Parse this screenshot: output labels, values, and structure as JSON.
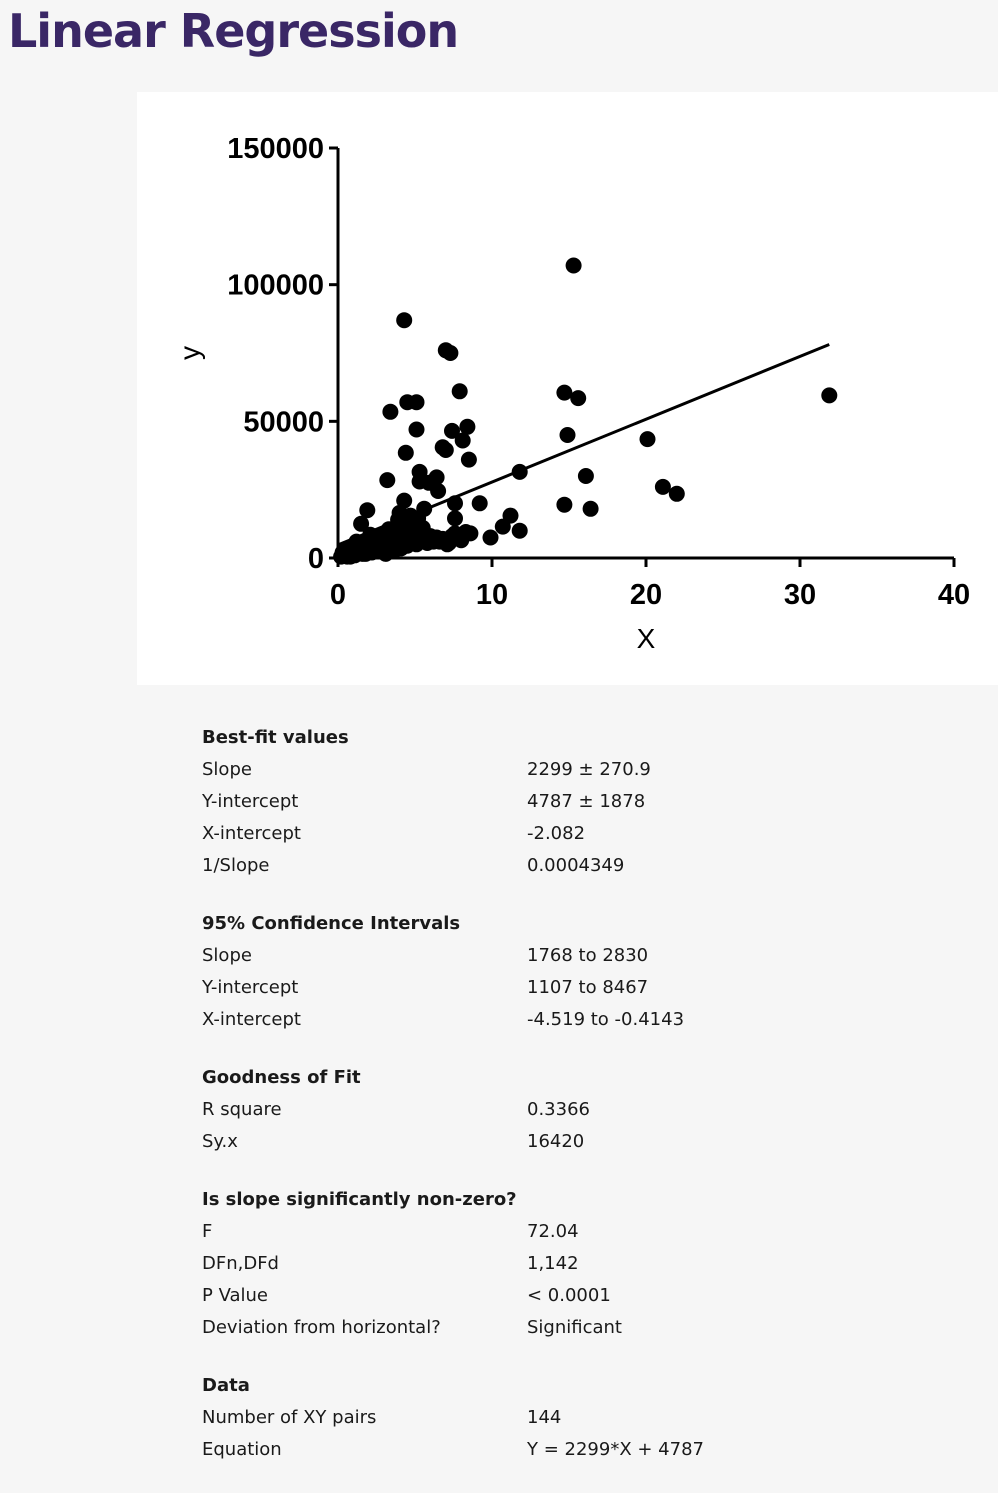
{
  "page": {
    "title": "Linear Regression"
  },
  "chart_data": {
    "type": "scatter",
    "xlabel": "X",
    "ylabel": "y",
    "xlim": [
      0,
      40
    ],
    "ylim": [
      0,
      150000
    ],
    "xticks": [
      "0",
      "10",
      "20",
      "30",
      "40"
    ],
    "yticks": [
      "0",
      "50000",
      "100000",
      "150000"
    ],
    "grid": false,
    "points": [
      [
        15.3,
        107000
      ],
      [
        4.3,
        87000
      ],
      [
        7.0,
        76000
      ],
      [
        7.3,
        75000
      ],
      [
        7.9,
        61000
      ],
      [
        14.7,
        60500
      ],
      [
        15.6,
        58500
      ],
      [
        31.9,
        59500
      ],
      [
        3.4,
        53500
      ],
      [
        4.5,
        57000
      ],
      [
        5.1,
        57000
      ],
      [
        8.4,
        48000
      ],
      [
        7.4,
        46500
      ],
      [
        5.1,
        47000
      ],
      [
        14.9,
        45000
      ],
      [
        8.1,
        43000
      ],
      [
        20.1,
        43500
      ],
      [
        6.8,
        40500
      ],
      [
        7.0,
        39500
      ],
      [
        4.4,
        38500
      ],
      [
        8.5,
        36000
      ],
      [
        11.8,
        31500
      ],
      [
        5.3,
        31500
      ],
      [
        16.1,
        30000
      ],
      [
        6.4,
        29500
      ],
      [
        3.2,
        28500
      ],
      [
        5.3,
        28000
      ],
      [
        5.9,
        27500
      ],
      [
        6.5,
        24500
      ],
      [
        21.1,
        26000
      ],
      [
        22.0,
        23500
      ],
      [
        4.3,
        21000
      ],
      [
        7.6,
        20000
      ],
      [
        9.2,
        20000
      ],
      [
        14.7,
        19500
      ],
      [
        16.4,
        18000
      ],
      [
        5.6,
        18000
      ],
      [
        1.9,
        17500
      ],
      [
        4.0,
        16500
      ],
      [
        11.2,
        15500
      ],
      [
        7.6,
        14500
      ],
      [
        4.6,
        13500
      ],
      [
        1.5,
        12500
      ],
      [
        3.9,
        12000
      ],
      [
        10.7,
        11500
      ],
      [
        11.8,
        10000
      ],
      [
        8.3,
        9500
      ],
      [
        7.6,
        9000
      ],
      [
        9.9,
        7500
      ],
      [
        6.4,
        7500
      ],
      [
        5.3,
        8500
      ],
      [
        6.0,
        6500
      ],
      [
        7.1,
        5000
      ],
      [
        2.6,
        7500
      ],
      [
        3.3,
        10500
      ],
      [
        4.8,
        11000
      ],
      [
        1.2,
        6000
      ],
      [
        4.5,
        4500
      ],
      [
        4.0,
        6500
      ],
      [
        1.9,
        5000
      ],
      [
        2.3,
        3500
      ],
      [
        0.6,
        3000
      ],
      [
        1.4,
        2500
      ],
      [
        0.3,
        1000
      ],
      [
        0.9,
        4000
      ],
      [
        1.6,
        1500
      ],
      [
        2.7,
        3000
      ],
      [
        3.6,
        2500
      ],
      [
        3.1,
        1500
      ],
      [
        3.9,
        3500
      ],
      [
        4.1,
        9000
      ],
      [
        4.9,
        12000
      ],
      [
        5.7,
        6500
      ],
      [
        6.6,
        6000
      ],
      [
        7.2,
        5500
      ],
      [
        8.0,
        6500
      ],
      [
        2.1,
        8500
      ],
      [
        2.9,
        6000
      ],
      [
        1.0,
        3000
      ],
      [
        0.5,
        1500
      ],
      [
        0.2,
        500
      ],
      [
        0.8,
        500
      ],
      [
        1.3,
        4000
      ],
      [
        1.8,
        4500
      ],
      [
        2.4,
        6000
      ],
      [
        3.0,
        5000
      ],
      [
        3.5,
        7500
      ],
      [
        3.8,
        6500
      ],
      [
        4.2,
        4500
      ],
      [
        4.8,
        6500
      ],
      [
        0.4,
        2500
      ],
      [
        0.7,
        2000
      ],
      [
        1.1,
        1000
      ],
      [
        1.7,
        2500
      ],
      [
        2.2,
        2000
      ],
      [
        2.8,
        3500
      ],
      [
        3.3,
        4000
      ],
      [
        3.7,
        5500
      ],
      [
        4.4,
        5500
      ],
      [
        5.1,
        5000
      ],
      [
        1.4,
        5500
      ],
      [
        2.0,
        6500
      ],
      [
        2.6,
        7000
      ],
      [
        3.0,
        8000
      ],
      [
        3.5,
        9500
      ],
      [
        4.0,
        10500
      ],
      [
        4.5,
        12000
      ],
      [
        4.9,
        13500
      ],
      [
        0.9,
        2000
      ],
      [
        1.5,
        3500
      ],
      [
        2.3,
        4500
      ],
      [
        3.2,
        6500
      ],
      [
        3.8,
        8500
      ],
      [
        4.6,
        9500
      ],
      [
        5.4,
        7000
      ],
      [
        6.2,
        6000
      ],
      [
        1.8,
        1500
      ],
      [
        2.5,
        2500
      ],
      [
        3.4,
        3000
      ],
      [
        4.1,
        3500
      ],
      [
        0.6,
        500
      ],
      [
        1.2,
        1500
      ],
      [
        2.0,
        3000
      ],
      [
        2.7,
        4500
      ],
      [
        3.6,
        4000
      ],
      [
        4.3,
        8000
      ],
      [
        5.0,
        9500
      ],
      [
        5.5,
        11000
      ],
      [
        3.9,
        14000
      ],
      [
        4.7,
        15500
      ],
      [
        5.2,
        14500
      ],
      [
        6.0,
        8000
      ],
      [
        6.8,
        7000
      ],
      [
        7.4,
        8000
      ],
      [
        8.6,
        9000
      ],
      [
        3.1,
        7000
      ],
      [
        2.2,
        5500
      ],
      [
        1.6,
        4000
      ],
      [
        0.8,
        2500
      ],
      [
        0.3,
        2000
      ],
      [
        4.6,
        7000
      ],
      [
        5.8,
        5500
      ],
      [
        3.7,
        9000
      ],
      [
        2.9,
        8500
      ]
    ],
    "fit": {
      "slope": 2299,
      "intercept": 4787,
      "x_range": [
        0,
        31.9
      ]
    }
  },
  "results": {
    "sections": [
      {
        "heading": "Best-fit values",
        "rows": [
          {
            "label": "Slope",
            "value": "2299 ± 270.9"
          },
          {
            "label": "Y-intercept",
            "value": "4787 ± 1878"
          },
          {
            "label": "X-intercept",
            "value": "-2.082"
          },
          {
            "label": "1/Slope",
            "value": "0.0004349"
          }
        ]
      },
      {
        "heading": "95% Confidence Intervals",
        "rows": [
          {
            "label": "Slope",
            "value": "1768 to 2830"
          },
          {
            "label": "Y-intercept",
            "value": "1107 to 8467"
          },
          {
            "label": "X-intercept",
            "value": "-4.519 to -0.4143"
          }
        ]
      },
      {
        "heading": "Goodness of Fit",
        "rows": [
          {
            "label": "R square",
            "value": "0.3366"
          },
          {
            "label": "Sy.x",
            "value": "16420"
          }
        ]
      },
      {
        "heading": "Is slope significantly non-zero?",
        "rows": [
          {
            "label": "F",
            "value": "72.04"
          },
          {
            "label": "DFn,DFd",
            "value": "1,142"
          },
          {
            "label": "P Value",
            "value": "< 0.0001"
          },
          {
            "label": "Deviation from horizontal?",
            "value": "Significant"
          }
        ]
      },
      {
        "heading": "Data",
        "rows": [
          {
            "label": "Number of XY pairs",
            "value": "144"
          },
          {
            "label": "Equation",
            "value": "Y = 2299*X + 4787"
          }
        ]
      }
    ]
  }
}
